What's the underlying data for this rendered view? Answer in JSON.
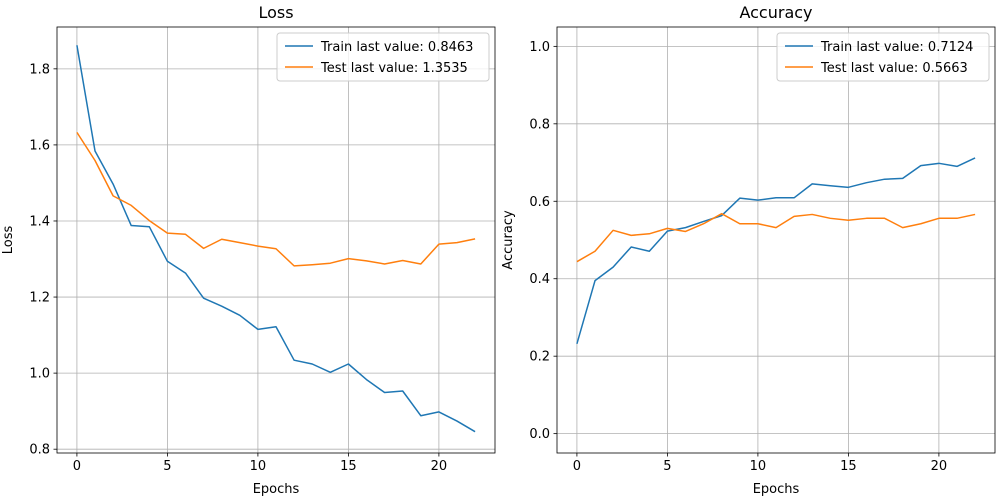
{
  "chart_data": [
    {
      "type": "line",
      "title": "Loss",
      "xlabel": "Epochs",
      "ylabel": "Loss",
      "xlim": [
        -1.1,
        23.1
      ],
      "ylim": [
        0.79,
        1.91
      ],
      "xticks": [
        0,
        5,
        10,
        15,
        20
      ],
      "yticks": [
        0.8,
        1.0,
        1.2,
        1.4,
        1.6,
        1.8
      ],
      "ytick_labels": [
        "0.8",
        "1.0",
        "1.2",
        "1.4",
        "1.6",
        "1.8"
      ],
      "grid": true,
      "legend_position": "top-right",
      "x": [
        0,
        1,
        2,
        3,
        4,
        5,
        6,
        7,
        8,
        9,
        10,
        11,
        12,
        13,
        14,
        15,
        16,
        17,
        18,
        19,
        20,
        21,
        22
      ],
      "series": [
        {
          "name": "Train last value: 0.8463",
          "color": "#1f77b4",
          "values": [
            1.862,
            1.584,
            1.497,
            1.388,
            1.385,
            1.294,
            1.263,
            1.197,
            1.176,
            1.152,
            1.115,
            1.122,
            1.034,
            1.024,
            1.002,
            1.024,
            0.983,
            0.949,
            0.953,
            0.888,
            0.898,
            0.874,
            0.846
          ]
        },
        {
          "name": "Test last value: 1.3535",
          "color": "#ff7f0e",
          "values": [
            1.633,
            1.559,
            1.466,
            1.441,
            1.401,
            1.368,
            1.365,
            1.328,
            1.352,
            1.343,
            1.334,
            1.327,
            1.282,
            1.285,
            1.289,
            1.301,
            1.295,
            1.287,
            1.296,
            1.287,
            1.339,
            1.343,
            1.353
          ]
        }
      ]
    },
    {
      "type": "line",
      "title": "Accuracy",
      "xlabel": "Epochs",
      "ylabel": "Accuracy",
      "xlim": [
        -1.1,
        23.1
      ],
      "ylim": [
        -0.05,
        1.05
      ],
      "xticks": [
        0,
        5,
        10,
        15,
        20
      ],
      "yticks": [
        0.0,
        0.2,
        0.4,
        0.6,
        0.8,
        1.0
      ],
      "ytick_labels": [
        "0.0",
        "0.2",
        "0.4",
        "0.6",
        "0.8",
        "1.0"
      ],
      "grid": true,
      "legend_position": "top-right",
      "x": [
        0,
        1,
        2,
        3,
        4,
        5,
        6,
        7,
        8,
        9,
        10,
        11,
        12,
        13,
        14,
        15,
        16,
        17,
        18,
        19,
        20,
        21,
        22
      ],
      "series": [
        {
          "name": "Train last value: 0.7124",
          "color": "#1f77b4",
          "values": [
            0.232,
            0.395,
            0.43,
            0.482,
            0.471,
            0.523,
            0.532,
            0.548,
            0.563,
            0.608,
            0.603,
            0.609,
            0.609,
            0.645,
            0.64,
            0.636,
            0.648,
            0.657,
            0.659,
            0.692,
            0.698,
            0.69,
            0.712
          ]
        },
        {
          "name": "Test last value: 0.5663",
          "color": "#ff7f0e",
          "values": [
            0.444,
            0.471,
            0.525,
            0.512,
            0.516,
            0.53,
            0.522,
            0.542,
            0.568,
            0.542,
            0.542,
            0.532,
            0.561,
            0.566,
            0.556,
            0.551,
            0.556,
            0.556,
            0.532,
            0.542,
            0.556,
            0.556,
            0.566
          ]
        }
      ]
    }
  ]
}
